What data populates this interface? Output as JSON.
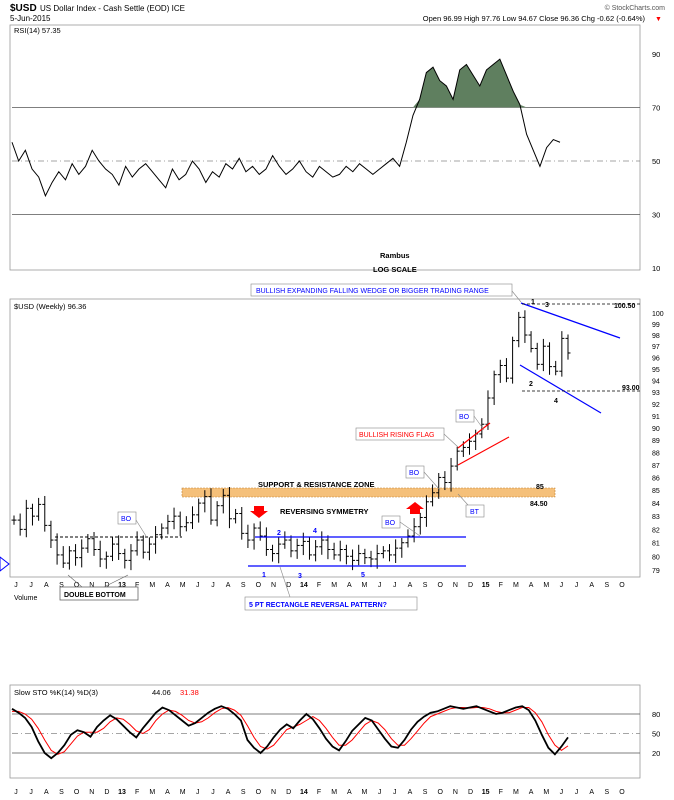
{
  "header": {
    "symbol": "$USD",
    "name": "US Dollar Index - Cash Settle (EOD) ICE",
    "date": "5-Jun-2015",
    "copyright": "© StockCharts.com",
    "quote": "Open 96.99  High 97.76  Low 94.67  Close 96.36  Chg -0.62 (-0.64%)",
    "quote_arrow": "▼"
  },
  "colors": {
    "price": "#000000",
    "rsi_fill": "#5f7f5f",
    "blue": "#0000ff",
    "red": "#ff0000",
    "zone": "#f5c07a",
    "grid": "#cccccc"
  },
  "annotations": {
    "rambus": "Rambus",
    "log_scale": "LOG SCALE",
    "wedge": "BULLISH EXPANDING FALLING WEDGE OR BIGGER TRADING RANGE",
    "flag": "BULLISH RISING FLAG",
    "zone": "SUPPORT & RESISTANCE ZONE",
    "symmetry": "REVERSING SYMMETRY",
    "double_bottom": "DOUBLE BOTTOM",
    "rectangle": "5 PT RECTANGLE REVERSAL PATTERN?",
    "bo": "BO",
    "bt": "BT",
    "lvl_10050": "100.50",
    "lvl_93": "93.00",
    "lvl_85": "85",
    "lvl_8450": "84.50",
    "rect_top_pts": [
      "2",
      "4"
    ],
    "rect_bot_pts": [
      "1",
      "3",
      "5"
    ],
    "wedge_pts_top": [
      "1",
      "3"
    ],
    "wedge_pts_bot": [
      "2",
      "4"
    ]
  },
  "chart_data": [
    {
      "type": "line",
      "panel": "RSI",
      "title": "RSI(14) 57.35",
      "ylim": [
        0,
        100
      ],
      "y_ticks": [
        10,
        30,
        50,
        70,
        90
      ],
      "overbought": 70,
      "oversold": 30,
      "midline": 50,
      "values": [
        57,
        50,
        54,
        47,
        44,
        37,
        42,
        46,
        43,
        49,
        45,
        48,
        54,
        50,
        47,
        45,
        41,
        48,
        44,
        47,
        49,
        46,
        43,
        40,
        47,
        43,
        45,
        50,
        47,
        42,
        46,
        44,
        49,
        47,
        51,
        46,
        48,
        45,
        47,
        52,
        48,
        45,
        47,
        50,
        46,
        44,
        48,
        46,
        44,
        45,
        48,
        46,
        49,
        47,
        45,
        47,
        49,
        51,
        48,
        57,
        67,
        73,
        83,
        85,
        80,
        78,
        73,
        84,
        86,
        82,
        78,
        84,
        86,
        88,
        82,
        76,
        71,
        60,
        54,
        48,
        55,
        58,
        57
      ]
    },
    {
      "type": "bar",
      "panel": "price",
      "title": "$USD (Weekly) 96.36",
      "scale": "log",
      "ylim": [
        78.5,
        101.5
      ],
      "y_ticks": [
        79,
        80,
        81,
        82,
        83,
        84,
        85,
        86,
        87,
        88,
        89,
        90,
        91,
        92,
        93,
        94,
        95,
        96,
        97,
        98,
        99,
        100
      ],
      "x_tick_labels": [
        "J",
        "J",
        "A",
        "S",
        "O",
        "N",
        "D",
        "13",
        "F",
        "M",
        "A",
        "M",
        "J",
        "J",
        "A",
        "S",
        "O",
        "N",
        "D",
        "14",
        "F",
        "M",
        "A",
        "M",
        "J",
        "J",
        "A",
        "S",
        "O",
        "N",
        "D",
        "15",
        "F",
        "M",
        "A",
        "M",
        "J",
        "J",
        "A",
        "S",
        "O"
      ],
      "close": [
        82.7,
        82.0,
        83.6,
        83.0,
        83.9,
        82.3,
        81.2,
        80.1,
        79.5,
        80.4,
        79.9,
        80.6,
        81.3,
        80.5,
        79.8,
        80.0,
        80.9,
        80.2,
        79.7,
        80.4,
        81.2,
        80.3,
        80.9,
        81.6,
        82.1,
        82.6,
        83.0,
        82.2,
        82.5,
        83.1,
        84.0,
        84.5,
        82.7,
        83.8,
        84.6,
        82.8,
        83.2,
        81.7,
        81.2,
        82.1,
        81.5,
        80.5,
        80.2,
        80.9,
        81.2,
        80.4,
        80.8,
        81.1,
        80.1,
        80.7,
        81.2,
        80.5,
        80.1,
        80.5,
        80.0,
        79.7,
        80.2,
        79.9,
        79.8,
        80.2,
        80.4,
        80.1,
        80.6,
        81.0,
        81.5,
        82.2,
        82.9,
        84.1,
        84.8,
        86.0,
        85.6,
        86.9,
        88.1,
        88.4,
        88.9,
        89.5,
        90.3,
        92.5,
        94.5,
        95.3,
        94.2,
        97.5,
        99.6,
        98.0,
        96.8,
        95.4,
        97.0,
        95.2,
        94.8,
        97.7,
        96.4
      ],
      "series_levels": {
        "support_resistance": [
          84.5,
          85
        ],
        "wedge_top": 100.5,
        "wedge_bottom": 93,
        "rectangle_top": 81.5,
        "rectangle_bottom": 79.3
      }
    },
    {
      "type": "line",
      "panel": "Slow STO",
      "title": "Slow STO %K(14) %D(3)",
      "k_value": "44.06",
      "d_value": "31.38",
      "ylim": [
        0,
        100
      ],
      "y_ticks": [
        20,
        50,
        80
      ],
      "k": [
        88,
        82,
        74,
        60,
        38,
        20,
        12,
        20,
        32,
        48,
        55,
        52,
        45,
        60,
        70,
        78,
        72,
        62,
        52,
        44,
        58,
        70,
        82,
        90,
        86,
        78,
        70,
        62,
        66,
        74,
        82,
        88,
        92,
        88,
        80,
        70,
        40,
        28,
        20,
        30,
        44,
        56,
        64,
        58,
        70,
        80,
        72,
        58,
        42,
        30,
        24,
        38,
        54,
        64,
        74,
        70,
        56,
        42,
        30,
        28,
        40,
        56,
        68,
        76,
        82,
        84,
        88,
        92,
        90,
        88,
        90,
        92,
        88,
        84,
        80,
        82,
        86,
        90,
        92,
        86,
        70,
        48,
        28,
        18,
        30,
        44
      ],
      "d": [
        84,
        84,
        80,
        72,
        58,
        40,
        24,
        18,
        22,
        34,
        46,
        52,
        52,
        52,
        58,
        68,
        74,
        72,
        64,
        54,
        50,
        56,
        70,
        80,
        86,
        84,
        78,
        70,
        66,
        68,
        74,
        82,
        88,
        90,
        86,
        78,
        62,
        44,
        30,
        26,
        32,
        44,
        56,
        60,
        64,
        70,
        76,
        70,
        58,
        44,
        32,
        32,
        40,
        52,
        64,
        70,
        66,
        56,
        42,
        32,
        32,
        42,
        54,
        66,
        76,
        80,
        84,
        88,
        90,
        90,
        89,
        90,
        90,
        88,
        84,
        82,
        82,
        86,
        90,
        90,
        82,
        68,
        48,
        32,
        24,
        31
      ]
    }
  ]
}
